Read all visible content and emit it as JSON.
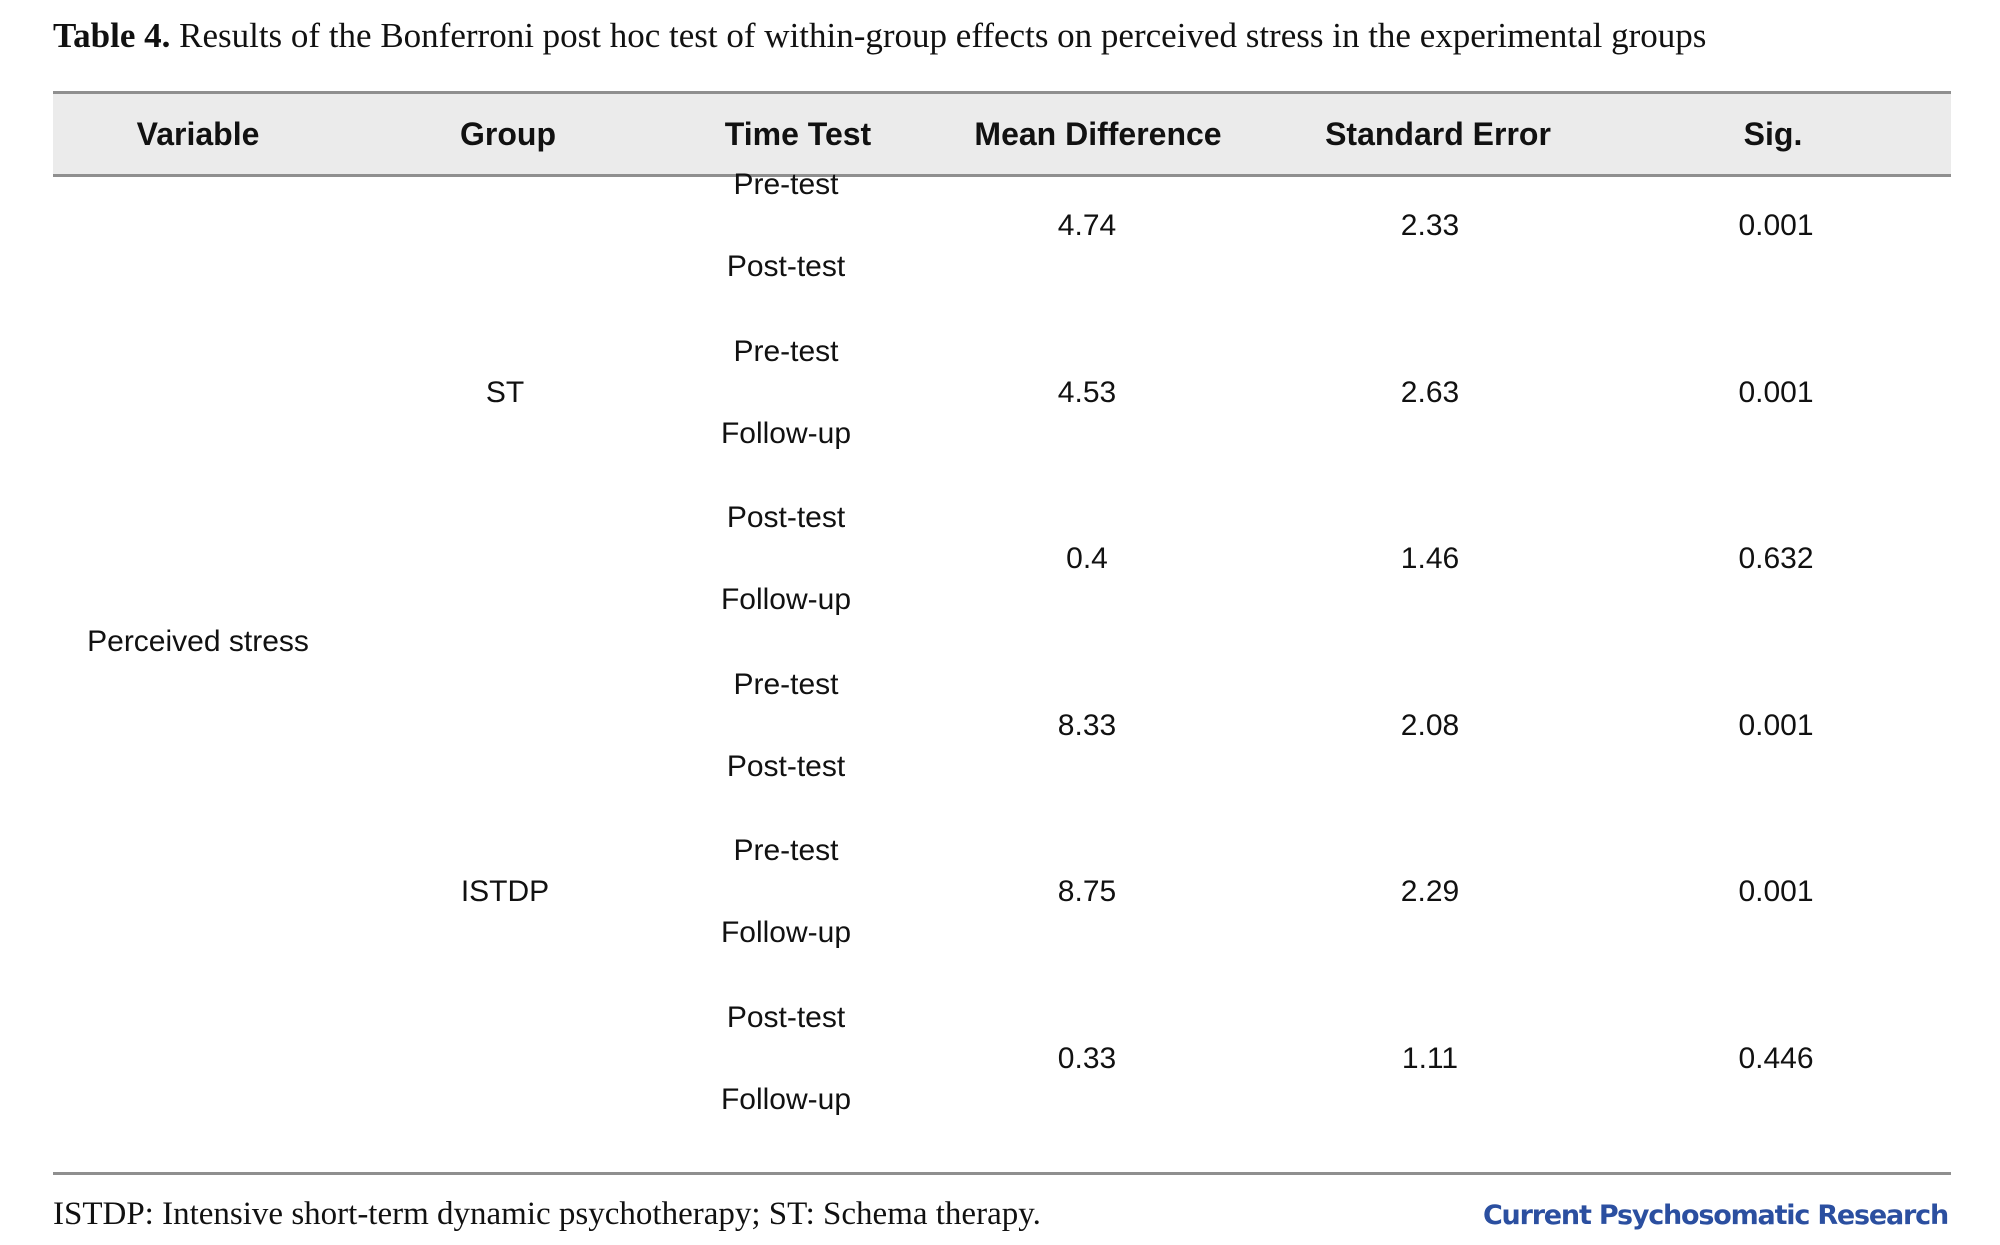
{
  "caption": {
    "label": "Table 4.",
    "text": "Results of the Bonferroni post hoc test of within-group effects on perceived stress in the experimental groups"
  },
  "table": {
    "headers": [
      "Variable",
      "Group",
      "Time Test",
      "Mean Difference",
      "Standard Error",
      "Sig."
    ],
    "variable": "Perceived stress",
    "groups": [
      {
        "name": "ST",
        "rows": [
          {
            "time_a": "Pre-test",
            "time_b": "Post-test",
            "mean_difference": "4.74",
            "standard_error": "2.33",
            "sig": "0.001"
          },
          {
            "time_a": "Pre-test",
            "time_b": "Follow-up",
            "mean_difference": "4.53",
            "standard_error": "2.63",
            "sig": "0.001"
          },
          {
            "time_a": "Post-test",
            "time_b": "Follow-up",
            "mean_difference": "0.4",
            "standard_error": "1.46",
            "sig": "0.632"
          }
        ]
      },
      {
        "name": "ISTDP",
        "rows": [
          {
            "time_a": "Pre-test",
            "time_b": "Post-test",
            "mean_difference": "8.33",
            "standard_error": "2.08",
            "sig": "0.001"
          },
          {
            "time_a": "Pre-test",
            "time_b": "Follow-up",
            "mean_difference": "8.75",
            "standard_error": "2.29",
            "sig": "0.001"
          },
          {
            "time_a": "Post-test",
            "time_b": "Follow-up",
            "mean_difference": "0.33",
            "standard_error": "1.11",
            "sig": "0.446"
          }
        ]
      }
    ]
  },
  "footnote": "ISTDP: Intensive short-term dynamic psychotherapy; ST: Schema therapy.",
  "journal": "Current Psychosomatic Research",
  "colors": {
    "header_background": "#ebebeb",
    "rule": "#8f8f8f",
    "journal_brand": "#2b4fa0"
  }
}
